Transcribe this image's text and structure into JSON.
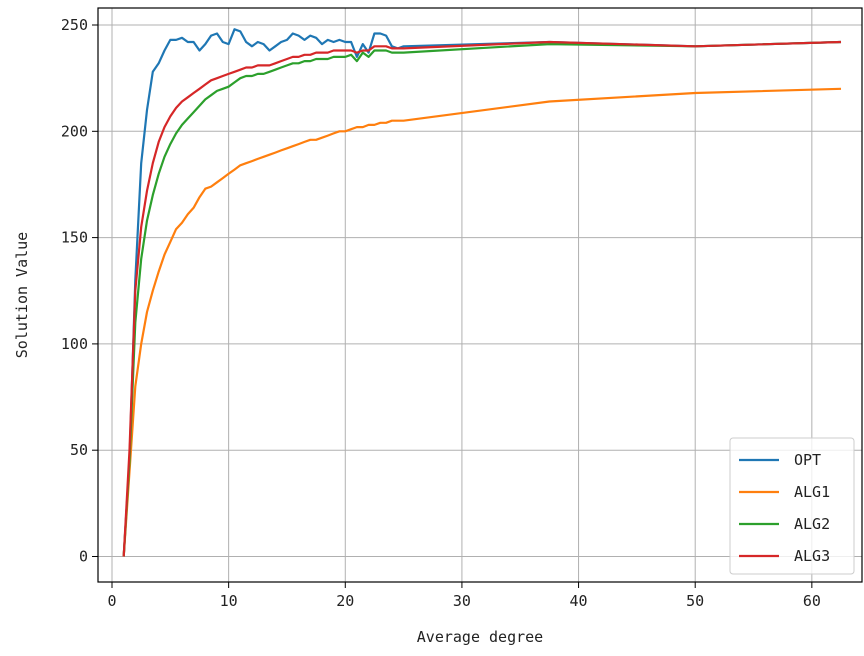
{
  "chart_data": {
    "type": "line",
    "title": "",
    "xlabel": "Average degree",
    "ylabel": "Solution Value",
    "xlim": [
      -1.2,
      64.3
    ],
    "ylim": [
      -12,
      258
    ],
    "xticks": [
      0,
      10,
      20,
      30,
      40,
      50,
      60
    ],
    "yticks": [
      0,
      50,
      100,
      150,
      200,
      250
    ],
    "grid": true,
    "legend_position": "bottom-right",
    "series": [
      {
        "name": "OPT",
        "color": "#1f77b4",
        "x": [
          1,
          1.5,
          2,
          2.5,
          3,
          3.5,
          4,
          4.5,
          5,
          5.5,
          6,
          6.5,
          7,
          7.5,
          8,
          8.5,
          9,
          9.5,
          10,
          10.5,
          11,
          11.5,
          12,
          12.5,
          13,
          13.5,
          14,
          14.5,
          15,
          15.5,
          16,
          16.5,
          17,
          17.5,
          18,
          18.5,
          19,
          19.5,
          20,
          20.5,
          21,
          21.5,
          22,
          22.5,
          23,
          23.5,
          24,
          24.5,
          25,
          37.5,
          50,
          62.5
        ],
        "y": [
          0,
          45,
          130,
          185,
          210,
          228,
          232,
          238,
          243,
          243,
          244,
          242,
          242,
          238,
          241,
          245,
          246,
          242,
          241,
          248,
          247,
          242,
          240,
          242,
          241,
          238,
          240,
          242,
          243,
          246,
          245,
          243,
          245,
          244,
          241,
          243,
          242,
          243,
          242,
          242,
          235,
          241,
          237,
          246,
          246,
          245,
          240,
          239,
          240,
          242,
          240,
          242
        ]
      },
      {
        "name": "ALG1",
        "color": "#ff7f0e",
        "x": [
          1,
          1.5,
          2,
          2.5,
          3,
          3.5,
          4,
          4.5,
          5,
          5.5,
          6,
          6.5,
          7,
          7.5,
          8,
          8.5,
          9,
          9.5,
          10,
          10.5,
          11,
          11.5,
          12,
          12.5,
          13,
          13.5,
          14,
          14.5,
          15,
          15.5,
          16,
          16.5,
          17,
          17.5,
          18,
          18.5,
          19,
          19.5,
          20,
          20.5,
          21,
          21.5,
          22,
          22.5,
          23,
          23.5,
          24,
          24.5,
          25,
          37.5,
          50,
          62.5
        ],
        "y": [
          0,
          40,
          80,
          100,
          115,
          125,
          134,
          142,
          148,
          154,
          157,
          161,
          164,
          169,
          173,
          174,
          176,
          178,
          180,
          182,
          184,
          185,
          186,
          187,
          188,
          189,
          190,
          191,
          192,
          193,
          194,
          195,
          196,
          196,
          197,
          198,
          199,
          200,
          200,
          201,
          202,
          202,
          203,
          203,
          204,
          204,
          205,
          205,
          205,
          214,
          218,
          220
        ]
      },
      {
        "name": "ALG2",
        "color": "#2ca02c",
        "x": [
          1,
          1.5,
          2,
          2.5,
          3,
          3.5,
          4,
          4.5,
          5,
          5.5,
          6,
          6.5,
          7,
          7.5,
          8,
          8.5,
          9,
          9.5,
          10,
          10.5,
          11,
          11.5,
          12,
          12.5,
          13,
          13.5,
          14,
          14.5,
          15,
          15.5,
          16,
          16.5,
          17,
          17.5,
          18,
          18.5,
          19,
          19.5,
          20,
          20.5,
          21,
          21.5,
          22,
          22.5,
          23,
          23.5,
          24,
          24.5,
          25,
          37.5,
          50,
          62.5
        ],
        "y": [
          0,
          45,
          110,
          140,
          158,
          170,
          180,
          188,
          194,
          199,
          203,
          206,
          209,
          212,
          215,
          217,
          219,
          220,
          221,
          223,
          225,
          226,
          226,
          227,
          227,
          228,
          229,
          230,
          231,
          232,
          232,
          233,
          233,
          234,
          234,
          234,
          235,
          235,
          235,
          236,
          233,
          237,
          235,
          238,
          238,
          238,
          237,
          237,
          237,
          241,
          240,
          242
        ]
      },
      {
        "name": "ALG3",
        "color": "#d62728",
        "x": [
          1,
          1.5,
          2,
          2.5,
          3,
          3.5,
          4,
          4.5,
          5,
          5.5,
          6,
          6.5,
          7,
          7.5,
          8,
          8.5,
          9,
          9.5,
          10,
          10.5,
          11,
          11.5,
          12,
          12.5,
          13,
          13.5,
          14,
          14.5,
          15,
          15.5,
          16,
          16.5,
          17,
          17.5,
          18,
          18.5,
          19,
          19.5,
          20,
          20.5,
          21,
          21.5,
          22,
          22.5,
          23,
          23.5,
          24,
          24.5,
          25,
          37.5,
          50,
          62.5
        ],
        "y": [
          0,
          50,
          125,
          155,
          172,
          185,
          195,
          202,
          207,
          211,
          214,
          216,
          218,
          220,
          222,
          224,
          225,
          226,
          227,
          228,
          229,
          230,
          230,
          231,
          231,
          231,
          232,
          233,
          234,
          235,
          235,
          236,
          236,
          237,
          237,
          237,
          238,
          238,
          238,
          238,
          237,
          238,
          238,
          240,
          240,
          240,
          239,
          239,
          239,
          242,
          240,
          242
        ]
      }
    ]
  }
}
